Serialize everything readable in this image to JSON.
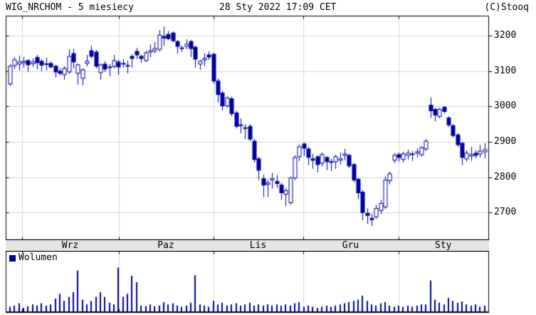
{
  "header": {
    "title": "WIG_NRCHOM - 5 miesiecy",
    "timestamp": "28 Sty 2022 17:09 CET",
    "source": "(C)Stooq"
  },
  "volume_panel": {
    "legend_label": "Wolumen"
  },
  "colors": {
    "candle": "#0000a0",
    "candle_hollow_fill": "#ffffff",
    "volume_bar": "#0000a0",
    "grid": "#d6d6d6",
    "border": "#000000",
    "axis_strip_bg": "#e4e4e4",
    "text": "#000000"
  },
  "chart_data": {
    "type": "candlestick",
    "title": "WIG_NRCHOM - 5 miesiecy",
    "subtitle": "28 Sty 2022 17:09 CET",
    "source": "(C)Stooq",
    "grid": true,
    "legend_position": "volume-top-left",
    "y_axis": {
      "side": "right",
      "ticks": [
        3200,
        3100,
        3000,
        2900,
        2800,
        2700
      ],
      "range": [
        2623,
        3256
      ]
    },
    "x_axis": {
      "month_labels": [
        "Wrz",
        "Paz",
        "Lis",
        "Gru",
        "Sty"
      ],
      "month_boundaries_x": [
        31,
        167,
        300,
        426,
        560
      ]
    },
    "volume": {
      "label": "Wolumen",
      "scale": "relative_percent_of_panel"
    },
    "candles_format": [
      "open",
      "high",
      "low",
      "close",
      "volume_rel"
    ],
    "candles": [
      [
        3064,
        3120,
        3058,
        3114,
        8
      ],
      [
        3116,
        3140,
        3106,
        3132,
        10
      ],
      [
        3120,
        3144,
        3102,
        3126,
        14
      ],
      [
        3124,
        3140,
        3110,
        3128,
        6
      ],
      [
        3130,
        3134,
        3098,
        3118,
        9
      ],
      [
        3121,
        3136,
        3112,
        3126,
        12
      ],
      [
        3139,
        3146,
        3105,
        3124,
        10
      ],
      [
        3128,
        3134,
        3100,
        3117,
        14
      ],
      [
        3120,
        3138,
        3102,
        3121,
        10
      ],
      [
        3122,
        3128,
        3108,
        3112,
        12
      ],
      [
        3114,
        3118,
        3082,
        3098,
        22
      ],
      [
        3100,
        3108,
        3088,
        3094,
        30
      ],
      [
        3090,
        3114,
        3076,
        3108,
        18
      ],
      [
        3098,
        3162,
        3092,
        3142,
        25
      ],
      [
        3150,
        3164,
        3108,
        3126,
        33
      ],
      [
        3094,
        3122,
        3062,
        3118,
        70
      ],
      [
        3080,
        3108,
        3060,
        3104,
        20
      ],
      [
        3122,
        3146,
        3114,
        3128,
        12
      ],
      [
        3158,
        3172,
        3136,
        3142,
        18
      ],
      [
        3154,
        3160,
        3108,
        3114,
        25
      ],
      [
        3096,
        3122,
        3076,
        3118,
        33
      ],
      [
        3120,
        3128,
        3098,
        3106,
        25
      ],
      [
        3112,
        3120,
        3086,
        3110,
        15
      ],
      [
        3114,
        3146,
        3108,
        3130,
        12
      ],
      [
        3126,
        3132,
        3090,
        3112,
        75
      ],
      [
        3120,
        3134,
        3110,
        3122,
        25
      ],
      [
        3116,
        3130,
        3094,
        3114,
        30
      ],
      [
        3142,
        3148,
        3110,
        3136,
        61
      ],
      [
        3156,
        3166,
        3134,
        3146,
        50
      ],
      [
        3142,
        3146,
        3124,
        3136,
        10
      ],
      [
        3130,
        3158,
        3126,
        3152,
        9
      ],
      [
        3154,
        3176,
        3140,
        3158,
        12
      ],
      [
        3158,
        3182,
        3150,
        3164,
        9
      ],
      [
        3162,
        3216,
        3156,
        3202,
        10
      ],
      [
        3198,
        3226,
        3172,
        3194,
        16
      ],
      [
        3204,
        3214,
        3188,
        3192,
        12
      ],
      [
        3208,
        3212,
        3182,
        3186,
        14
      ],
      [
        3184,
        3188,
        3150,
        3170,
        10
      ],
      [
        3164,
        3172,
        3154,
        3166,
        8
      ],
      [
        3170,
        3190,
        3162,
        3176,
        10
      ],
      [
        3184,
        3188,
        3140,
        3164,
        15
      ],
      [
        3168,
        3172,
        3110,
        3134,
        62
      ],
      [
        3120,
        3132,
        3104,
        3128,
        12
      ],
      [
        3132,
        3150,
        3114,
        3136,
        10
      ],
      [
        3146,
        3156,
        3132,
        3140,
        8
      ],
      [
        3148,
        3152,
        3064,
        3072,
        18
      ],
      [
        3072,
        3080,
        3012,
        3034,
        12
      ],
      [
        3038,
        3044,
        2988,
        3002,
        15
      ],
      [
        3002,
        3030,
        2996,
        3024,
        10
      ],
      [
        3022,
        3028,
        2972,
        2980,
        12
      ],
      [
        2982,
        2988,
        2938,
        2944,
        14
      ],
      [
        2946,
        2966,
        2924,
        2948,
        10
      ],
      [
        2940,
        2950,
        2908,
        2938,
        12
      ],
      [
        2944,
        2950,
        2902,
        2908,
        15
      ],
      [
        2902,
        2908,
        2842,
        2850,
        10
      ],
      [
        2852,
        2858,
        2792,
        2820,
        12
      ],
      [
        2796,
        2808,
        2744,
        2778,
        10
      ],
      [
        2780,
        2792,
        2744,
        2784,
        12
      ],
      [
        2792,
        2812,
        2768,
        2796,
        10
      ],
      [
        2788,
        2806,
        2770,
        2782,
        12
      ],
      [
        2778,
        2784,
        2736,
        2756,
        10
      ],
      [
        2752,
        2768,
        2718,
        2762,
        12
      ],
      [
        2728,
        2802,
        2722,
        2798,
        10
      ],
      [
        2798,
        2862,
        2792,
        2856,
        14
      ],
      [
        2858,
        2892,
        2846,
        2886,
        16
      ],
      [
        2894,
        2898,
        2860,
        2882,
        8
      ],
      [
        2880,
        2886,
        2834,
        2856,
        10
      ],
      [
        2852,
        2866,
        2824,
        2848,
        8
      ],
      [
        2858,
        2862,
        2814,
        2836,
        6
      ],
      [
        2840,
        2870,
        2830,
        2864,
        8
      ],
      [
        2856,
        2860,
        2820,
        2844,
        10
      ],
      [
        2844,
        2852,
        2818,
        2842,
        8
      ],
      [
        2844,
        2864,
        2824,
        2858,
        10
      ],
      [
        2848,
        2870,
        2836,
        2852,
        12
      ],
      [
        2862,
        2880,
        2848,
        2866,
        14
      ],
      [
        2862,
        2866,
        2826,
        2832,
        16
      ],
      [
        2836,
        2840,
        2786,
        2792,
        18
      ],
      [
        2794,
        2798,
        2738,
        2756,
        20
      ],
      [
        2758,
        2764,
        2678,
        2700,
        27
      ],
      [
        2698,
        2712,
        2668,
        2692,
        18
      ],
      [
        2684,
        2696,
        2662,
        2680,
        12
      ],
      [
        2688,
        2722,
        2682,
        2712,
        10
      ],
      [
        2706,
        2736,
        2696,
        2726,
        14
      ],
      [
        2716,
        2802,
        2710,
        2792,
        16
      ],
      [
        2790,
        2816,
        2780,
        2810,
        10
      ],
      [
        2848,
        2868,
        2840,
        2862,
        8
      ],
      [
        2864,
        2870,
        2844,
        2856,
        10
      ],
      [
        2850,
        2872,
        2842,
        2866,
        8
      ],
      [
        2862,
        2878,
        2850,
        2868,
        10
      ],
      [
        2866,
        2874,
        2846,
        2864,
        8
      ],
      [
        2868,
        2882,
        2856,
        2872,
        10
      ],
      [
        2864,
        2888,
        2858,
        2884,
        12
      ],
      [
        2880,
        2908,
        2874,
        2902,
        12
      ],
      [
        3004,
        3026,
        2968,
        2988,
        53
      ],
      [
        2992,
        2996,
        2958,
        2976,
        20
      ],
      [
        2972,
        2996,
        2966,
        2992,
        15
      ],
      [
        2998,
        3002,
        2980,
        2986,
        12
      ],
      [
        2968,
        2972,
        2942,
        2948,
        23
      ],
      [
        2946,
        2950,
        2912,
        2918,
        18
      ],
      [
        2920,
        2924,
        2886,
        2892,
        15
      ],
      [
        2896,
        2900,
        2834,
        2856,
        17
      ],
      [
        2852,
        2876,
        2844,
        2868,
        12
      ],
      [
        2860,
        2886,
        2846,
        2864,
        10
      ],
      [
        2868,
        2876,
        2854,
        2862,
        12
      ],
      [
        2866,
        2892,
        2856,
        2874,
        8
      ],
      [
        2872,
        2896,
        2854,
        2878,
        10
      ]
    ]
  }
}
